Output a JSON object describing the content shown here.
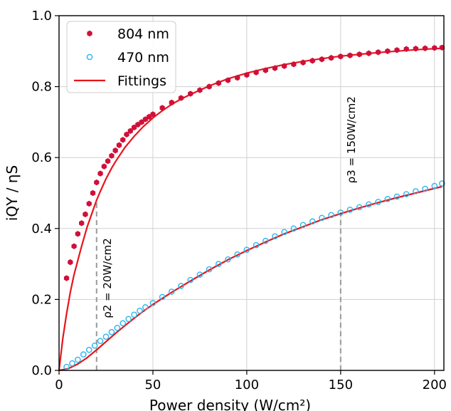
{
  "chart_data": {
    "type": "scatter",
    "xlabel": "Power density (W/cm²)",
    "ylabel": "iQY / ηS",
    "xlim": [
      0,
      205
    ],
    "ylim": [
      0,
      1.0
    ],
    "x_ticks": [
      "0",
      "50",
      "100",
      "150",
      "200"
    ],
    "y_ticks": [
      "0.0",
      "0.2",
      "0.4",
      "0.6",
      "0.8",
      "1.0"
    ],
    "grid": true,
    "legend_position": "top-left",
    "series": [
      {
        "name": "804 nm",
        "kind": "scatter",
        "marker": "filled-hexagon",
        "color": "#d0103a",
        "x": [
          4,
          6,
          8,
          10,
          12,
          14,
          16,
          18,
          20,
          22,
          24,
          26,
          28,
          30,
          32,
          34,
          36,
          38,
          40,
          42,
          44,
          46,
          48,
          50,
          55,
          60,
          65,
          70,
          75,
          80,
          85,
          90,
          95,
          100,
          105,
          110,
          115,
          120,
          125,
          130,
          135,
          140,
          145,
          150,
          155,
          160,
          165,
          170,
          175,
          180,
          185,
          190,
          195,
          200,
          204
        ],
        "y": [
          0.26,
          0.305,
          0.35,
          0.385,
          0.415,
          0.44,
          0.47,
          0.5,
          0.53,
          0.555,
          0.575,
          0.59,
          0.605,
          0.62,
          0.635,
          0.65,
          0.665,
          0.675,
          0.685,
          0.693,
          0.7,
          0.708,
          0.715,
          0.722,
          0.74,
          0.755,
          0.768,
          0.78,
          0.79,
          0.8,
          0.81,
          0.818,
          0.825,
          0.833,
          0.84,
          0.846,
          0.852,
          0.858,
          0.863,
          0.868,
          0.873,
          0.877,
          0.881,
          0.885,
          0.888,
          0.891,
          0.894,
          0.897,
          0.9,
          0.903,
          0.906,
          0.907,
          0.908,
          0.909,
          0.91
        ]
      },
      {
        "name": "470 nm",
        "kind": "scatter",
        "marker": "open-circle",
        "color": "#29b6f0",
        "x": [
          4,
          7,
          10,
          13,
          16,
          19,
          22,
          25,
          28,
          31,
          34,
          37,
          40,
          43,
          46,
          50,
          55,
          60,
          65,
          70,
          75,
          80,
          85,
          90,
          95,
          100,
          105,
          110,
          115,
          120,
          125,
          130,
          135,
          140,
          145,
          150,
          155,
          160,
          165,
          170,
          175,
          180,
          185,
          190,
          195,
          200,
          204
        ],
        "y": [
          0.01,
          0.02,
          0.03,
          0.045,
          0.058,
          0.07,
          0.083,
          0.095,
          0.108,
          0.12,
          0.133,
          0.145,
          0.157,
          0.168,
          0.178,
          0.19,
          0.207,
          0.222,
          0.238,
          0.255,
          0.27,
          0.285,
          0.3,
          0.313,
          0.327,
          0.34,
          0.353,
          0.365,
          0.378,
          0.39,
          0.4,
          0.41,
          0.42,
          0.43,
          0.438,
          0.445,
          0.453,
          0.46,
          0.468,
          0.475,
          0.483,
          0.49,
          0.497,
          0.505,
          0.512,
          0.52,
          0.527
        ]
      },
      {
        "name": "Fittings",
        "kind": "line",
        "color": "#e8141a",
        "curves": [
          {
            "x": [
              0,
              2,
              4,
              6,
              8,
              10,
              12,
              15,
              18,
              20,
              22,
              25,
              28,
              30,
              35,
              40,
              45,
              50,
              55,
              60,
              65,
              70,
              80,
              90,
              100,
              110,
              120,
              130,
              140,
              150,
              160,
              170,
              180,
              190,
              200,
              204
            ],
            "y": [
              0,
              0.09,
              0.16,
              0.22,
              0.27,
              0.31,
              0.35,
              0.405,
              0.45,
              0.48,
              0.505,
              0.54,
              0.57,
              0.588,
              0.628,
              0.66,
              0.688,
              0.712,
              0.732,
              0.75,
              0.765,
              0.778,
              0.802,
              0.822,
              0.838,
              0.851,
              0.862,
              0.871,
              0.879,
              0.886,
              0.891,
              0.896,
              0.9,
              0.904,
              0.907,
              0.908
            ]
          },
          {
            "x": [
              0,
              5,
              10,
              15,
              20,
              25,
              30,
              35,
              40,
              45,
              50,
              60,
              70,
              80,
              90,
              100,
              110,
              120,
              130,
              140,
              150,
              160,
              170,
              180,
              190,
              200,
              204
            ],
            "y": [
              0,
              0.005,
              0.018,
              0.036,
              0.058,
              0.081,
              0.104,
              0.126,
              0.147,
              0.167,
              0.186,
              0.22,
              0.252,
              0.283,
              0.312,
              0.338,
              0.362,
              0.385,
              0.405,
              0.425,
              0.442,
              0.458,
              0.473,
              0.487,
              0.5,
              0.513,
              0.518
            ]
          }
        ]
      }
    ],
    "annotations": [
      {
        "x": 20,
        "y_from": 0,
        "y_to": 0.48,
        "label": "ρ2 = 20W/cm2",
        "style": "dashed-gray"
      },
      {
        "x": 150,
        "y_from": 0,
        "y_to": 0.445,
        "label": "ρ3 = 150W/cm2",
        "style": "dashed-gray"
      }
    ]
  }
}
